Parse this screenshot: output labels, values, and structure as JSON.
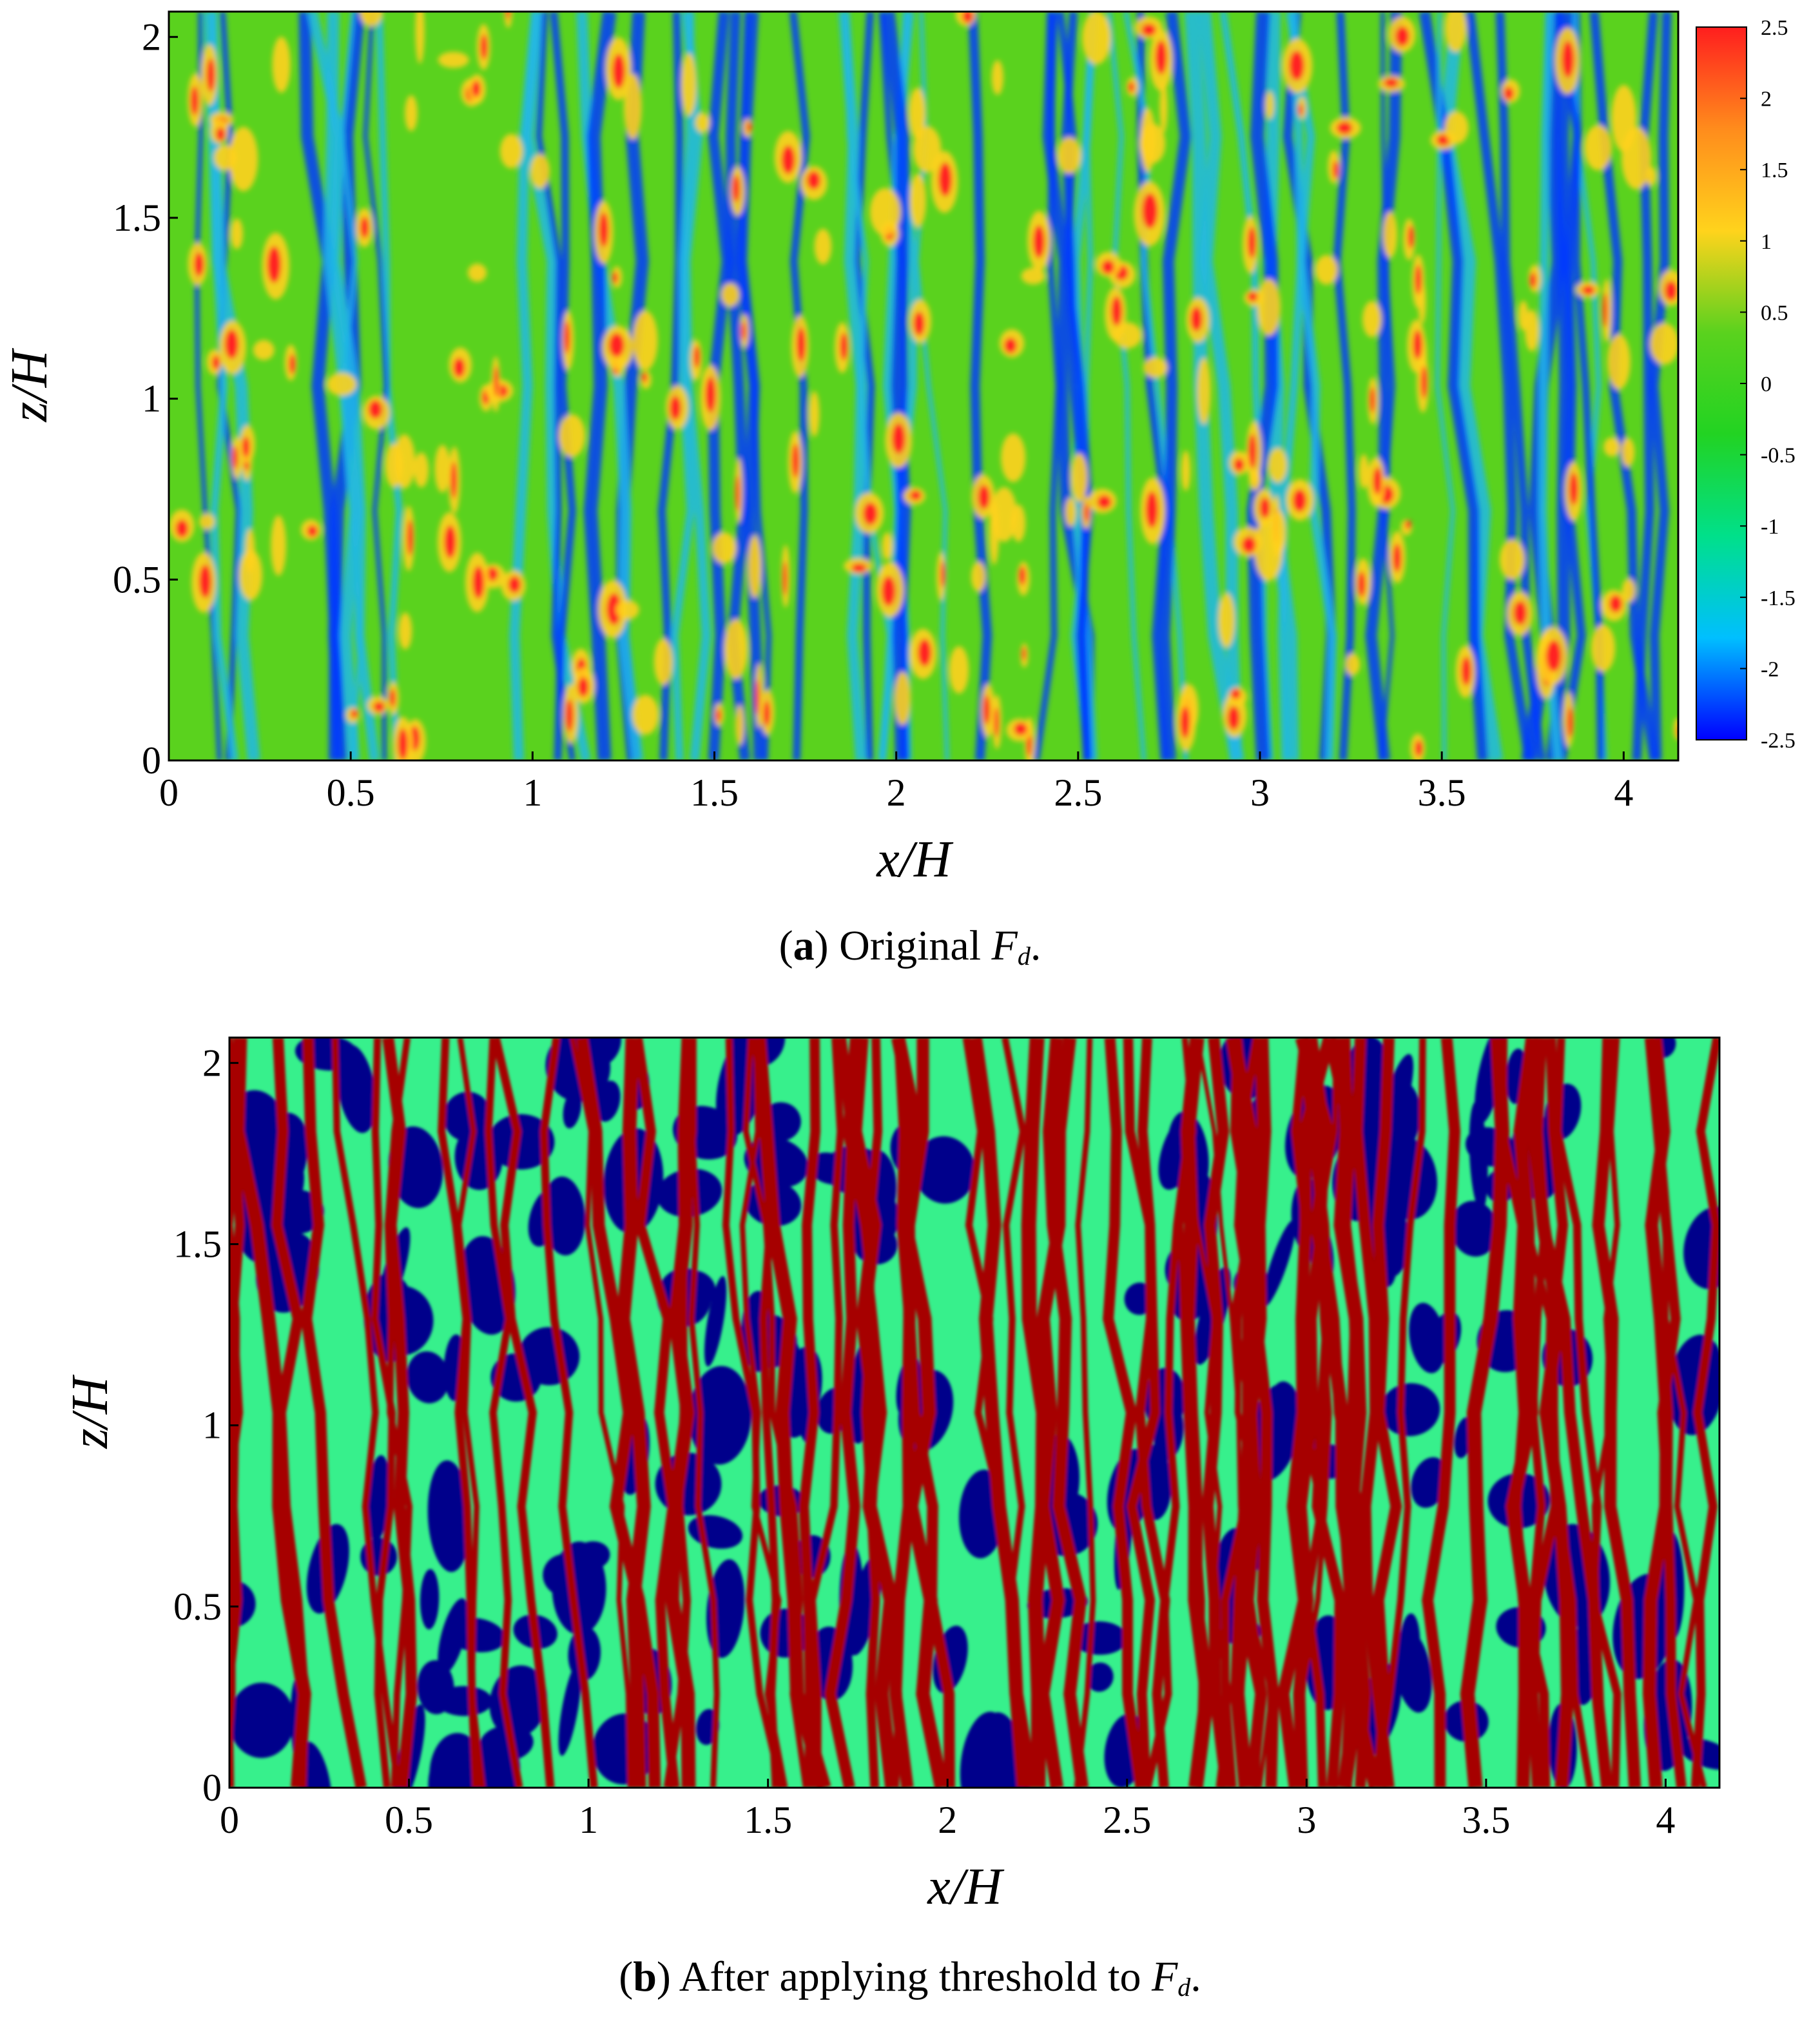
{
  "chart_data": [
    {
      "type": "heatmap",
      "caption_label": "a",
      "caption_text": "Original",
      "caption_symbol": "F",
      "caption_subscript": "d",
      "caption_end": ".",
      "xlabel": "x/H",
      "ylabel": "z/H",
      "xlim": [
        0,
        4.15
      ],
      "ylim": [
        0,
        2.07
      ],
      "xticks": [
        "0",
        "0.5",
        "1",
        "1.5",
        "2",
        "2.5",
        "3",
        "3.5",
        "4"
      ],
      "yticks": [
        "0",
        "0.5",
        "1",
        "1.5",
        "2"
      ],
      "colorbar": {
        "range": [
          -2.5,
          2.5
        ],
        "ticks": [
          "2.5",
          "2",
          "1.5",
          "1",
          "0.5",
          "0",
          "-0.5",
          "-1",
          "-1.5",
          "-2",
          "-2.5"
        ],
        "colors": [
          "#0000ff",
          "#00bfff",
          "#00e08a",
          "#22d322",
          "#5ad21e",
          "#ffd31c",
          "#ff8c1c",
          "#ff1e1e"
        ]
      },
      "field_description_colors": {
        "background": "#5ad21e",
        "low": "#0038ff",
        "mid_low": "#20b9e6",
        "high": "#ffd11c",
        "peak": "#ff2222"
      }
    },
    {
      "type": "heatmap",
      "caption_label": "b",
      "caption_text": "After applying threshold to",
      "caption_symbol": "F",
      "caption_subscript": "d",
      "caption_end": ".",
      "xlabel": "x/H",
      "ylabel": "z/H",
      "xlim": [
        0,
        4.15
      ],
      "ylim": [
        0,
        2.07
      ],
      "xticks": [
        "0",
        "0.5",
        "1",
        "1.5",
        "2",
        "2.5",
        "3",
        "3.5",
        "4"
      ],
      "yticks": [
        "0",
        "0.5",
        "1",
        "1.5",
        "2"
      ],
      "levels": {
        "low": "#00008b",
        "middle": "#37f08c",
        "high": "#a60000"
      }
    }
  ]
}
